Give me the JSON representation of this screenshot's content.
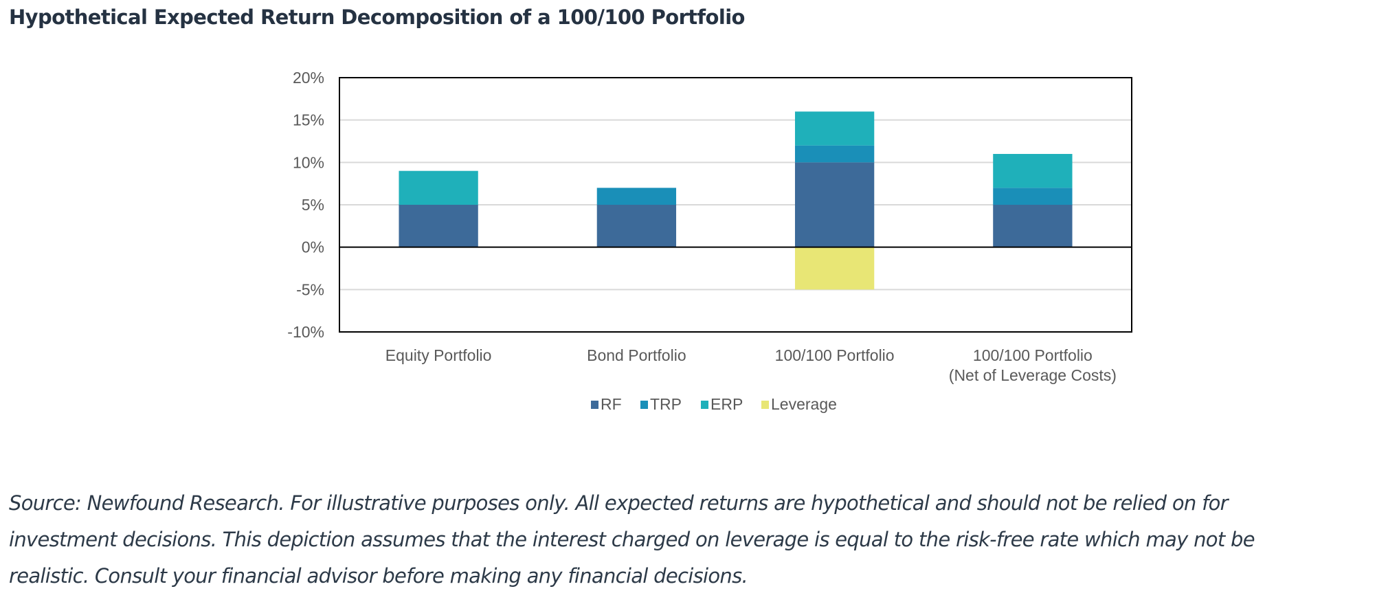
{
  "page": {
    "title": "Hypothetical Expected Return Decomposition of a 100/100 Portfolio",
    "caption_lines": [
      "Source: Newfound Research. For illustrative purposes only. All expected returns are hypothetical and should not be relied on for",
      "investment decisions. This depiction assumes that the interest charged on leverage is equal to the risk-free rate which may not be",
      "realistic. Consult your financial advisor before making any financial decisions."
    ]
  },
  "chart_data": {
    "type": "bar",
    "stacked": true,
    "title": "Hypothetical Expected Return Decomposition of a 100/100 Portfolio",
    "xlabel": "",
    "ylabel": "",
    "ylim": [
      -10,
      20
    ],
    "yticks": [
      -10,
      -5,
      0,
      5,
      10,
      15,
      20
    ],
    "ytick_labels": [
      "-10%",
      "-5%",
      "0%",
      "5%",
      "10%",
      "15%",
      "20%"
    ],
    "grid": true,
    "legend_position": "bottom-center",
    "categories": [
      [
        "Equity Portfolio"
      ],
      [
        "Bond Portfolio"
      ],
      [
        "100/100 Portfolio"
      ],
      [
        "100/100 Portfolio",
        "(Net of Leverage Costs)"
      ]
    ],
    "series": [
      {
        "name": "RF",
        "color": "#3d6a99",
        "values": [
          5,
          5,
          10,
          5
        ]
      },
      {
        "name": "TRP",
        "color": "#1a8fb8",
        "values": [
          0,
          2,
          2,
          2
        ]
      },
      {
        "name": "ERP",
        "color": "#1fb0ba",
        "values": [
          4,
          0,
          4,
          4
        ]
      },
      {
        "name": "Leverage",
        "color": "#e8e675",
        "values": [
          0,
          0,
          -5,
          0
        ]
      }
    ]
  }
}
